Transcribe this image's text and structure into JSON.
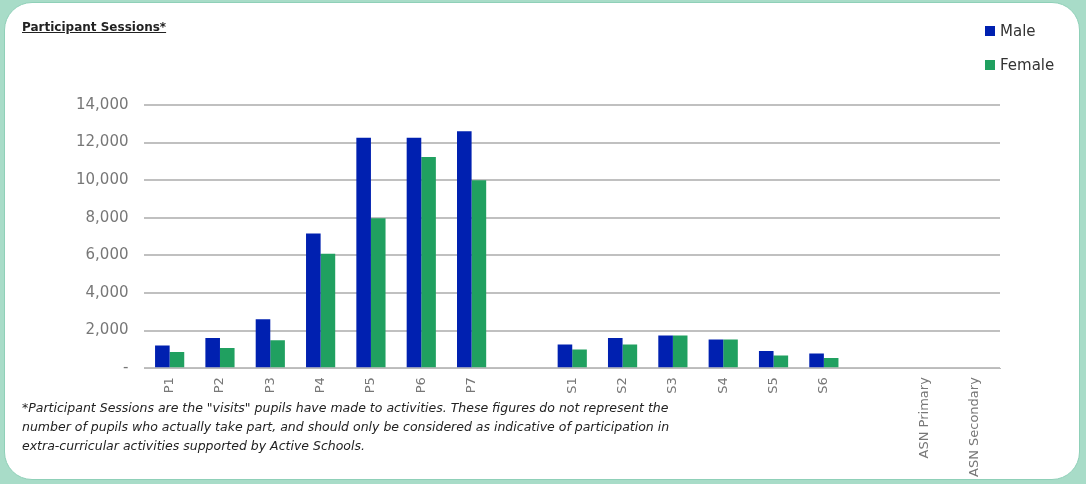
{
  "chart_data": {
    "type": "bar",
    "title": "Participant Sessions*",
    "categories": [
      "P1",
      "P2",
      "P3",
      "P4",
      "P5",
      "P6",
      "P7",
      null,
      "S1",
      "S2",
      "S3",
      "S4",
      "S5",
      "S6",
      null,
      "ASN Primary",
      "ASN Secondary"
    ],
    "series": [
      {
        "name": "Male",
        "color": "#0020b0",
        "values": [
          1200,
          1600,
          2600,
          7160,
          12260,
          12260,
          12600,
          null,
          1260,
          1610,
          1740,
          1530,
          910,
          780,
          null,
          null,
          null
        ]
      },
      {
        "name": "Female",
        "color": "#20a060",
        "values": [
          860,
          1070,
          1480,
          6090,
          7970,
          11240,
          10000,
          null,
          990,
          1260,
          1740,
          1530,
          670,
          540,
          null,
          null,
          null
        ]
      }
    ],
    "ylim": [
      0,
      14000
    ],
    "yticks": [
      {
        "value": 0,
        "label": "-"
      },
      {
        "value": 2000,
        "label": "2,000"
      },
      {
        "value": 4000,
        "label": "4,000"
      },
      {
        "value": 6000,
        "label": "6,000"
      },
      {
        "value": 8000,
        "label": "8,000"
      },
      {
        "value": 10000,
        "label": "10,000"
      },
      {
        "value": 12000,
        "label": "12,000"
      },
      {
        "value": 14000,
        "label": "14,000"
      }
    ],
    "grid": "y",
    "legend": "top right",
    "annotations": [
      "*Participant Sessions are the \"visits\" pupils have made to activities. These figures do not represent the number of pupils who actually take part, and should only be considered as indicative of participation in extra-curricular activities supported by Active Schools."
    ]
  }
}
